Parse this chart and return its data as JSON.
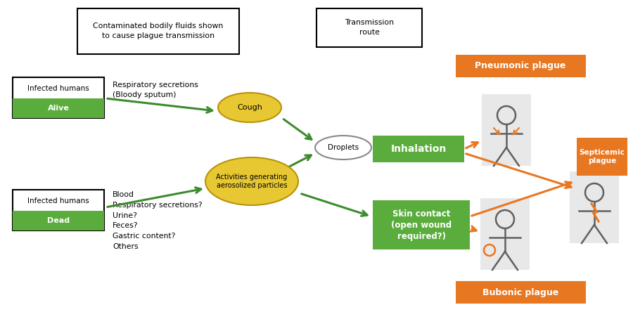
{
  "figsize": [
    9.0,
    4.44
  ],
  "dpi": 100,
  "bg_color": "#ffffff",
  "green_color": "#5aad3c",
  "dark_green": "#3d8b2e",
  "orange_color": "#e87722",
  "yellow_color": "#d4b800",
  "yellow_face": "#e8c832",
  "gray_person": "#606060",
  "person_bg": "#e8e8e8",
  "legend1_text": "Contaminated bodily fluids shown\nto cause plague transmission",
  "legend2_text": "Transmission\nroute",
  "alive_line1": "Infected humans",
  "alive_line2": "Alive",
  "dead_line1": "Infected humans",
  "dead_line2": "Dead",
  "resp_text": "Respiratory secretions\n(Bloody sputum)",
  "dead_fluids": "Blood\nRespiratory secretions?\nUrine?\nFeces?\nGastric content?\nOthers",
  "cough_text": "Cough",
  "droplets_text": "Droplets",
  "inhalation_text": "Inhalation",
  "activities_text": "Activities generating\naerosolized particles",
  "skin_text": "Skin contact\n(open wound\nrequired?)",
  "pneumonic_text": "Pneumonic plague",
  "septicemic_text": "Septicemic\nplague",
  "bubonic_text": "Bubonic plague"
}
